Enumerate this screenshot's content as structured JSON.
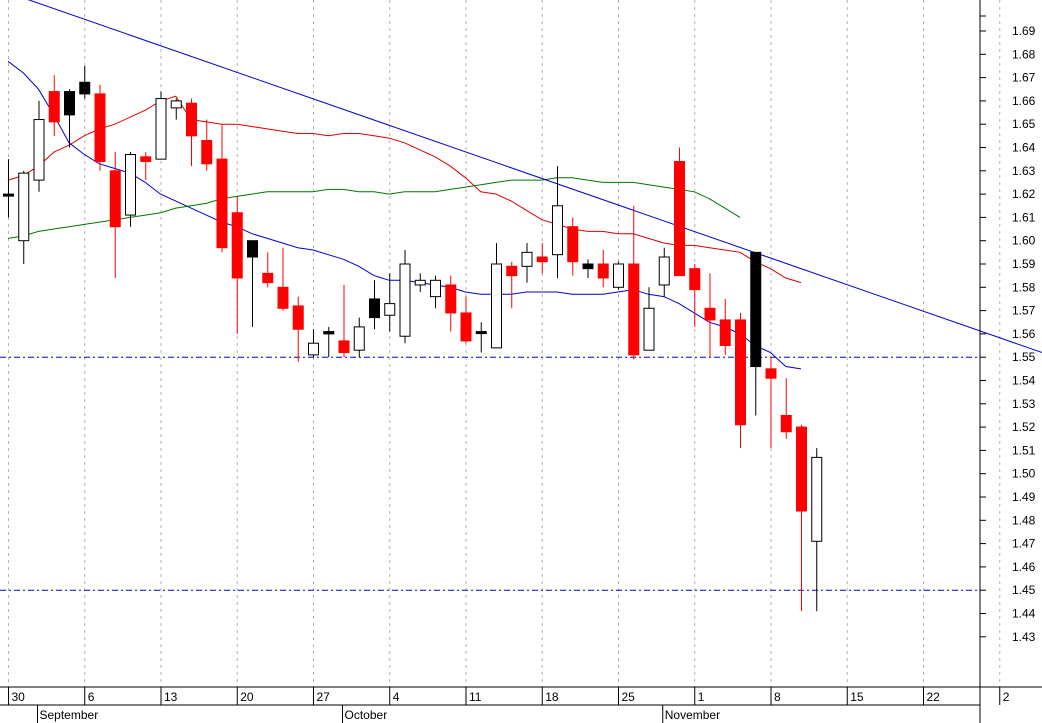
{
  "chart_data": {
    "type": "candlestick",
    "title": "",
    "xlabel": "",
    "ylabel": "",
    "ylim": [
      1.42,
      1.7
    ],
    "y_ticks": [
      "1.43",
      "1.44",
      "1.45",
      "1.46",
      "1.47",
      "1.48",
      "1.49",
      "1.50",
      "1.51",
      "1.52",
      "1.53",
      "1.54",
      "1.55",
      "1.56",
      "1.57",
      "1.58",
      "1.59",
      "1.60",
      "1.61",
      "1.62",
      "1.63",
      "1.64",
      "1.65",
      "1.66",
      "1.67",
      "1.68",
      "1.69"
    ],
    "x_day_ticks": [
      "30",
      "6",
      "13",
      "20",
      "27",
      "4",
      "11",
      "18",
      "25",
      "1",
      "8",
      "15",
      "22",
      "2"
    ],
    "x_month_labels": [
      "September",
      "October",
      "November"
    ],
    "grid": "vertical dotted at weekly ticks",
    "colors": {
      "down_candle": "#ff0000",
      "up_candle": "#ffffff",
      "candle_outline": "#000000",
      "ma_red": "#dd0000",
      "ma_blue": "#0000cc",
      "ma_green": "#007700",
      "trendline": "#0000cc",
      "support_line": "#0000cc"
    },
    "candles": [
      {
        "o": 1.62,
        "h": 1.635,
        "l": 1.61,
        "c": 1.62,
        "color": "black"
      },
      {
        "o": 1.6,
        "h": 1.63,
        "l": 1.59,
        "c": 1.629,
        "color": "white"
      },
      {
        "o": 1.626,
        "h": 1.66,
        "l": 1.621,
        "c": 1.652,
        "color": "white"
      },
      {
        "o": 1.651,
        "h": 1.671,
        "l": 1.645,
        "c": 1.664,
        "color": "red"
      },
      {
        "o": 1.664,
        "h": 1.665,
        "l": 1.64,
        "c": 1.654,
        "color": "black"
      },
      {
        "o": 1.668,
        "h": 1.675,
        "l": 1.661,
        "c": 1.663,
        "color": "black"
      },
      {
        "o": 1.663,
        "h": 1.667,
        "l": 1.63,
        "c": 1.634,
        "color": "red"
      },
      {
        "o": 1.63,
        "h": 1.638,
        "l": 1.584,
        "c": 1.606,
        "color": "red"
      },
      {
        "o": 1.611,
        "h": 1.638,
        "l": 1.606,
        "c": 1.637,
        "color": "white"
      },
      {
        "o": 1.636,
        "h": 1.638,
        "l": 1.626,
        "c": 1.634,
        "color": "red"
      },
      {
        "o": 1.635,
        "h": 1.664,
        "l": 1.635,
        "c": 1.661,
        "color": "white"
      },
      {
        "o": 1.657,
        "h": 1.661,
        "l": 1.652,
        "c": 1.66,
        "color": "white"
      },
      {
        "o": 1.659,
        "h": 1.661,
        "l": 1.632,
        "c": 1.645,
        "color": "red"
      },
      {
        "o": 1.643,
        "h": 1.652,
        "l": 1.63,
        "c": 1.633,
        "color": "red"
      },
      {
        "o": 1.635,
        "h": 1.65,
        "l": 1.595,
        "c": 1.597,
        "color": "red"
      },
      {
        "o": 1.612,
        "h": 1.619,
        "l": 1.56,
        "c": 1.584,
        "color": "red"
      },
      {
        "o": 1.6,
        "h": 1.598,
        "l": 1.563,
        "c": 1.593,
        "color": "black"
      },
      {
        "o": 1.586,
        "h": 1.595,
        "l": 1.58,
        "c": 1.582,
        "color": "red"
      },
      {
        "o": 1.58,
        "h": 1.597,
        "l": 1.57,
        "c": 1.571,
        "color": "red"
      },
      {
        "o": 1.572,
        "h": 1.576,
        "l": 1.548,
        "c": 1.562,
        "color": "red"
      },
      {
        "o": 1.551,
        "h": 1.562,
        "l": 1.55,
        "c": 1.556,
        "color": "white"
      },
      {
        "o": 1.561,
        "h": 1.563,
        "l": 1.55,
        "c": 1.56,
        "color": "black"
      },
      {
        "o": 1.557,
        "h": 1.581,
        "l": 1.55,
        "c": 1.552,
        "color": "red"
      },
      {
        "o": 1.553,
        "h": 1.567,
        "l": 1.55,
        "c": 1.563,
        "color": "white"
      },
      {
        "o": 1.567,
        "h": 1.583,
        "l": 1.562,
        "c": 1.575,
        "color": "black"
      },
      {
        "o": 1.568,
        "h": 1.586,
        "l": 1.561,
        "c": 1.573,
        "color": "white"
      },
      {
        "o": 1.559,
        "h": 1.596,
        "l": 1.556,
        "c": 1.59,
        "color": "white"
      },
      {
        "o": 1.581,
        "h": 1.586,
        "l": 1.578,
        "c": 1.583,
        "color": "white"
      },
      {
        "o": 1.576,
        "h": 1.585,
        "l": 1.571,
        "c": 1.583,
        "color": "white"
      },
      {
        "o": 1.581,
        "h": 1.585,
        "l": 1.561,
        "c": 1.569,
        "color": "red"
      },
      {
        "o": 1.569,
        "h": 1.576,
        "l": 1.556,
        "c": 1.557,
        "color": "red"
      },
      {
        "o": 1.561,
        "h": 1.565,
        "l": 1.552,
        "c": 1.561,
        "color": "black"
      },
      {
        "o": 1.554,
        "h": 1.599,
        "l": 1.554,
        "c": 1.59,
        "color": "white"
      },
      {
        "o": 1.589,
        "h": 1.591,
        "l": 1.571,
        "c": 1.585,
        "color": "red"
      },
      {
        "o": 1.589,
        "h": 1.599,
        "l": 1.582,
        "c": 1.595,
        "color": "white"
      },
      {
        "o": 1.593,
        "h": 1.599,
        "l": 1.586,
        "c": 1.591,
        "color": "red"
      },
      {
        "o": 1.594,
        "h": 1.632,
        "l": 1.584,
        "c": 1.615,
        "color": "white"
      },
      {
        "o": 1.606,
        "h": 1.61,
        "l": 1.585,
        "c": 1.591,
        "color": "red"
      },
      {
        "o": 1.59,
        "h": 1.592,
        "l": 1.584,
        "c": 1.588,
        "color": "black"
      },
      {
        "o": 1.59,
        "h": 1.596,
        "l": 1.58,
        "c": 1.584,
        "color": "red"
      },
      {
        "o": 1.58,
        "h": 1.591,
        "l": 1.579,
        "c": 1.59,
        "color": "white"
      },
      {
        "o": 1.59,
        "h": 1.615,
        "l": 1.549,
        "c": 1.551,
        "color": "red"
      },
      {
        "o": 1.553,
        "h": 1.58,
        "l": 1.553,
        "c": 1.571,
        "color": "white"
      },
      {
        "o": 1.581,
        "h": 1.597,
        "l": 1.576,
        "c": 1.593,
        "color": "white"
      },
      {
        "o": 1.634,
        "h": 1.64,
        "l": 1.585,
        "c": 1.585,
        "color": "red"
      },
      {
        "o": 1.588,
        "h": 1.59,
        "l": 1.563,
        "c": 1.579,
        "color": "red"
      },
      {
        "o": 1.571,
        "h": 1.586,
        "l": 1.55,
        "c": 1.566,
        "color": "red"
      },
      {
        "o": 1.566,
        "h": 1.575,
        "l": 1.551,
        "c": 1.555,
        "color": "red"
      },
      {
        "o": 1.566,
        "h": 1.569,
        "l": 1.511,
        "c": 1.521,
        "color": "red"
      },
      {
        "o": 1.546,
        "h": 1.595,
        "l": 1.525,
        "c": 1.595,
        "color": "black"
      },
      {
        "o": 1.545,
        "h": 1.55,
        "l": 1.511,
        "c": 1.541,
        "color": "red"
      },
      {
        "o": 1.525,
        "h": 1.541,
        "l": 1.515,
        "c": 1.518,
        "color": "red"
      },
      {
        "o": 1.52,
        "h": 1.521,
        "l": 1.441,
        "c": 1.484,
        "color": "red"
      },
      {
        "o": 1.471,
        "h": 1.511,
        "l": 1.441,
        "c": 1.507,
        "color": "white"
      }
    ],
    "moving_averages": [
      {
        "name": "",
        "color": "#dd0000",
        "points": [
          [
            0,
            1.626
          ],
          [
            1,
            1.628
          ],
          [
            2,
            1.632
          ],
          [
            3,
            1.638
          ],
          [
            4,
            1.641
          ],
          [
            5,
            1.645
          ],
          [
            6,
            1.648
          ],
          [
            7,
            1.65
          ],
          [
            8,
            1.653
          ],
          [
            9,
            1.656
          ],
          [
            10,
            1.66
          ],
          [
            11,
            1.662
          ],
          [
            12,
            1.652
          ],
          [
            13,
            1.651
          ],
          [
            14,
            1.65
          ],
          [
            15,
            1.65
          ],
          [
            16,
            1.649
          ],
          [
            17,
            1.648
          ],
          [
            18,
            1.647
          ],
          [
            19,
            1.646
          ],
          [
            20,
            1.646
          ],
          [
            21,
            1.645
          ],
          [
            22,
            1.646
          ],
          [
            23,
            1.646
          ],
          [
            24,
            1.645
          ],
          [
            25,
            1.644
          ],
          [
            26,
            1.642
          ],
          [
            27,
            1.639
          ],
          [
            28,
            1.636
          ],
          [
            29,
            1.632
          ],
          [
            30,
            1.627
          ],
          [
            31,
            1.621
          ],
          [
            32,
            1.62
          ],
          [
            33,
            1.617
          ],
          [
            34,
            1.613
          ],
          [
            35,
            1.609
          ],
          [
            36,
            1.607
          ],
          [
            37,
            1.605
          ],
          [
            38,
            1.604
          ],
          [
            39,
            1.604
          ],
          [
            40,
            1.603
          ],
          [
            41,
            1.603
          ],
          [
            42,
            1.601
          ],
          [
            43,
            1.599
          ],
          [
            44,
            1.598
          ],
          [
            45,
            1.598
          ],
          [
            46,
            1.597
          ],
          [
            47,
            1.596
          ],
          [
            48,
            1.595
          ],
          [
            49,
            1.591
          ],
          [
            50,
            1.588
          ],
          [
            51,
            1.584
          ],
          [
            52,
            1.582
          ]
        ]
      },
      {
        "name": "",
        "color": "#0000cc",
        "points": [
          [
            0,
            1.677
          ],
          [
            1,
            1.672
          ],
          [
            2,
            1.665
          ],
          [
            3,
            1.654
          ],
          [
            4,
            1.642
          ],
          [
            5,
            1.637
          ],
          [
            6,
            1.633
          ],
          [
            7,
            1.631
          ],
          [
            8,
            1.629
          ],
          [
            9,
            1.625
          ],
          [
            10,
            1.62
          ],
          [
            11,
            1.617
          ],
          [
            12,
            1.614
          ],
          [
            13,
            1.611
          ],
          [
            14,
            1.608
          ],
          [
            15,
            1.606
          ],
          [
            16,
            1.603
          ],
          [
            17,
            1.601
          ],
          [
            18,
            1.599
          ],
          [
            19,
            1.597
          ],
          [
            20,
            1.596
          ],
          [
            21,
            1.594
          ],
          [
            22,
            1.592
          ],
          [
            23,
            1.589
          ],
          [
            24,
            1.585
          ],
          [
            25,
            1.583
          ],
          [
            26,
            1.583
          ],
          [
            27,
            1.582
          ],
          [
            28,
            1.581
          ],
          [
            29,
            1.58
          ],
          [
            30,
            1.578
          ],
          [
            31,
            1.577
          ],
          [
            32,
            1.577
          ],
          [
            33,
            1.577
          ],
          [
            34,
            1.578
          ],
          [
            35,
            1.578
          ],
          [
            36,
            1.578
          ],
          [
            37,
            1.577
          ],
          [
            38,
            1.577
          ],
          [
            39,
            1.577
          ],
          [
            40,
            1.578
          ],
          [
            41,
            1.579
          ],
          [
            42,
            1.577
          ],
          [
            43,
            1.576
          ],
          [
            44,
            1.573
          ],
          [
            45,
            1.569
          ],
          [
            46,
            1.565
          ],
          [
            47,
            1.563
          ],
          [
            48,
            1.56
          ],
          [
            49,
            1.555
          ],
          [
            50,
            1.552
          ],
          [
            51,
            1.546
          ],
          [
            52,
            1.545
          ]
        ]
      },
      {
        "name": "",
        "color": "#007700",
        "points": [
          [
            0,
            1.601
          ],
          [
            1,
            1.602
          ],
          [
            2,
            1.604
          ],
          [
            3,
            1.605
          ],
          [
            4,
            1.606
          ],
          [
            5,
            1.607
          ],
          [
            6,
            1.608
          ],
          [
            7,
            1.609
          ],
          [
            8,
            1.61
          ],
          [
            9,
            1.611
          ],
          [
            10,
            1.612
          ],
          [
            11,
            1.614
          ],
          [
            12,
            1.615
          ],
          [
            13,
            1.616
          ],
          [
            14,
            1.618
          ],
          [
            15,
            1.619
          ],
          [
            16,
            1.62
          ],
          [
            17,
            1.621
          ],
          [
            18,
            1.621
          ],
          [
            19,
            1.621
          ],
          [
            20,
            1.621
          ],
          [
            21,
            1.622
          ],
          [
            22,
            1.622
          ],
          [
            23,
            1.621
          ],
          [
            24,
            1.621
          ],
          [
            25,
            1.62
          ],
          [
            26,
            1.621
          ],
          [
            27,
            1.621
          ],
          [
            28,
            1.621
          ],
          [
            29,
            1.622
          ],
          [
            30,
            1.623
          ],
          [
            31,
            1.624
          ],
          [
            32,
            1.625
          ],
          [
            33,
            1.626
          ],
          [
            34,
            1.626
          ],
          [
            35,
            1.626
          ],
          [
            36,
            1.627
          ],
          [
            37,
            1.627
          ],
          [
            38,
            1.626
          ],
          [
            39,
            1.625
          ],
          [
            40,
            1.625
          ],
          [
            41,
            1.625
          ],
          [
            42,
            1.624
          ],
          [
            43,
            1.623
          ],
          [
            44,
            1.622
          ],
          [
            45,
            1.621
          ],
          [
            46,
            1.618
          ],
          [
            47,
            1.614
          ],
          [
            48,
            1.61
          ]
        ]
      }
    ],
    "trendline": {
      "from": [
        -5.5,
        1.719
      ],
      "to": [
        70,
        1.547
      ]
    },
    "support_lines": [
      1.55,
      1.45
    ]
  }
}
